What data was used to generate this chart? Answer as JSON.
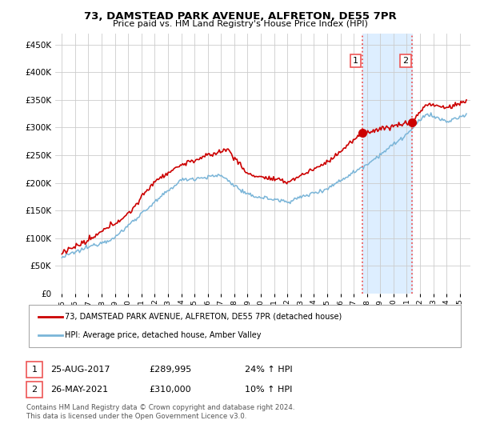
{
  "title": "73, DAMSTEAD PARK AVENUE, ALFRETON, DE55 7PR",
  "subtitle": "Price paid vs. HM Land Registry's House Price Index (HPI)",
  "ylim": [
    0,
    470000
  ],
  "yticks": [
    0,
    50000,
    100000,
    150000,
    200000,
    250000,
    300000,
    350000,
    400000,
    450000
  ],
  "ytick_labels": [
    "£0",
    "£50K",
    "£100K",
    "£150K",
    "£200K",
    "£250K",
    "£300K",
    "£350K",
    "£400K",
    "£450K"
  ],
  "hpi_color": "#7ab5d8",
  "price_color": "#cc0000",
  "sale1_x": 2017.65,
  "sale1_y": 289995,
  "sale1_label": "1",
  "sale2_x": 2021.4,
  "sale2_y": 310000,
  "sale2_label": "2",
  "vline_color": "#ee5555",
  "shade_color": "#ddeeff",
  "legend_line1": "73, DAMSTEAD PARK AVENUE, ALFRETON, DE55 7PR (detached house)",
  "legend_line2": "HPI: Average price, detached house, Amber Valley",
  "table_row1_num": "1",
  "table_row1_date": "25-AUG-2017",
  "table_row1_price": "£289,995",
  "table_row1_hpi": "24% ↑ HPI",
  "table_row2_num": "2",
  "table_row2_date": "26-MAY-2021",
  "table_row2_price": "£310,000",
  "table_row2_hpi": "10% ↑ HPI",
  "footer": "Contains HM Land Registry data © Crown copyright and database right 2024.\nThis data is licensed under the Open Government Licence v3.0.",
  "background_color": "#ffffff",
  "grid_color": "#cccccc",
  "xlim_left": 1994.5,
  "xlim_right": 2025.8
}
